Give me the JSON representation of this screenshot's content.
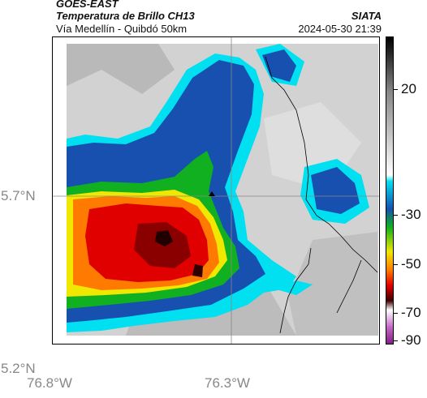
{
  "header": {
    "satellite": "GOES-EAST",
    "product": "Temperatura de Brillo CH13",
    "region": "Vía Medellín - Quibdó 50km",
    "org": "SIATA",
    "datetime": "2024-05-30 21:39"
  },
  "axes": {
    "lat_ticks": [
      "5.7°N",
      "5.2°N"
    ],
    "lon_ticks": [
      "76.8°W",
      "76.3°W"
    ]
  },
  "colorbar": {
    "ticks": [
      "20",
      "-30",
      "-50",
      "-70",
      "-90"
    ],
    "colors": {
      "very_cold": "#a040a0",
      "black": "#000000",
      "red": "#e00000",
      "orange": "#ff8000",
      "yellow": "#f0f000",
      "green": "#00c000",
      "blue": "#0040a0",
      "cyan": "#00e0f0",
      "warm_gray": "#c8c8c8"
    }
  },
  "map": {
    "marker_icon": "triangle-marker"
  }
}
